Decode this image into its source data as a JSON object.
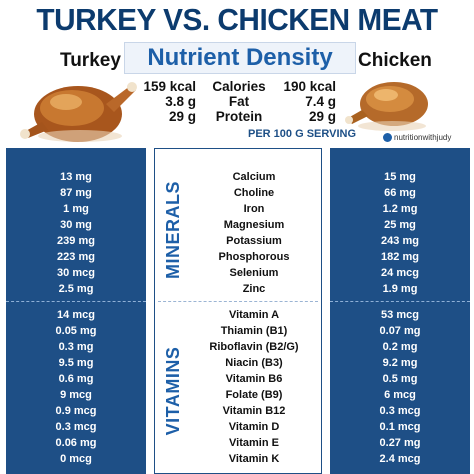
{
  "header": {
    "title": "TURKEY VS. CHICKEN MEAT",
    "subtitle": "Nutrient Density",
    "turkey_label": "Turkey",
    "chicken_label": "Chicken",
    "serving": "PER 100 G SERVING",
    "brand": "nutritionwithjudy"
  },
  "macros": {
    "labels": [
      "Calories",
      "Fat",
      "Protein"
    ],
    "turkey": [
      "159 kcal",
      "3.8 g",
      "29 g"
    ],
    "chicken": [
      "190 kcal",
      "7.4 g",
      "29 g"
    ]
  },
  "sections": {
    "minerals_label": "MINERALS",
    "vitamins_label": "VITAMINS"
  },
  "minerals": {
    "names": [
      "Calcium",
      "Choline",
      "Iron",
      "Magnesium",
      "Potassium",
      "Phosphorous",
      "Selenium",
      "Zinc"
    ],
    "turkey": [
      "13 mg",
      "87 mg",
      "1 mg",
      "30 mg",
      "239 mg",
      "223 mg",
      "30 mcg",
      "2.5 mg"
    ],
    "chicken": [
      "15 mg",
      "66 mg",
      "1.2 mg",
      "25 mg",
      "243 mg",
      "182 mg",
      "24 mcg",
      "1.9 mg"
    ]
  },
  "vitamins": {
    "names": [
      "Vitamin A",
      "Thiamin (B1)",
      "Riboflavin (B2/G)",
      "Niacin (B3)",
      "Vitamin B6",
      "Folate (B9)",
      "Vitamin B12",
      "Vitamin D",
      "Vitamin E",
      "Vitamin K"
    ],
    "turkey": [
      "14 mcg",
      "0.05 mg",
      "0.3 mg",
      "9.5 mg",
      "0.6 mg",
      "9 mcg",
      "0.9 mcg",
      "0.3 mcg",
      "0.06 mg",
      "0 mcg"
    ],
    "chicken": [
      "53 mcg",
      "0.07 mg",
      "0.2 mg",
      "9.2 mg",
      "0.5 mg",
      "6 mcg",
      "0.3 mcg",
      "0.1 mcg",
      "0.27 mg",
      "2.4 mcg"
    ]
  },
  "colors": {
    "panel": "#1e4f86",
    "title": "#0c3b6e",
    "accent": "#1d5fa8"
  }
}
